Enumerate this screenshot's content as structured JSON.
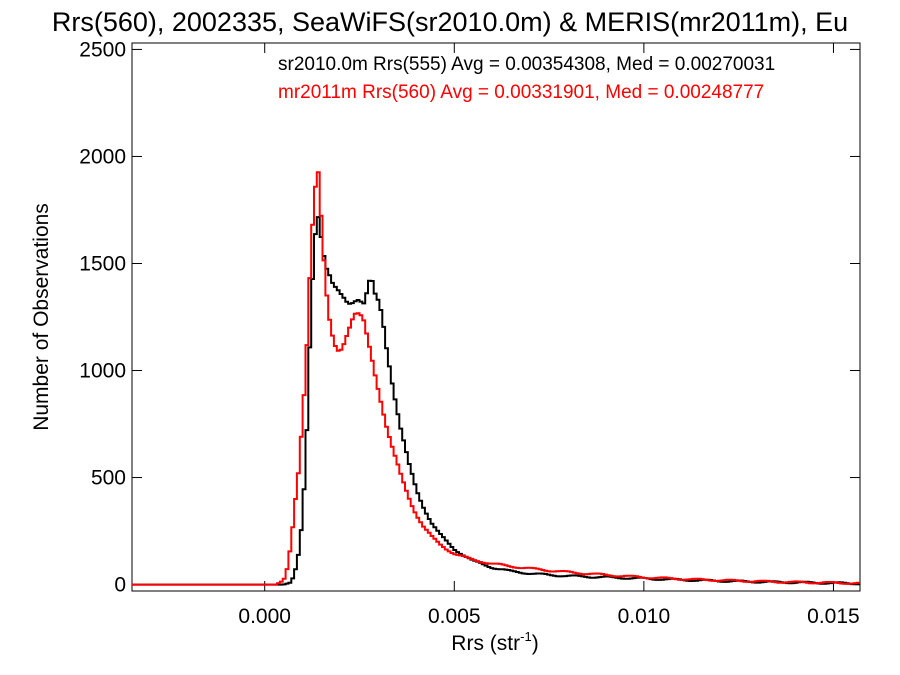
{
  "chart_data": {
    "type": "line",
    "title": "Rrs(560), 2002335, SeaWiFS(sr2010.0m) & MERIS(mr2011m), Eu",
    "xlabel_main": "Rrs (str",
    "xlabel_sup": "-1",
    "xlabel_close": ")",
    "ylabel": "Number of Observations",
    "xlim": [
      -0.0035,
      0.0157
    ],
    "ylim": [
      -30,
      2530
    ],
    "x_ticks": [
      0.0,
      0.005,
      0.01,
      0.015
    ],
    "x_tick_labels": [
      "0.000",
      "0.005",
      "0.010",
      "0.015"
    ],
    "y_ticks": [
      0,
      500,
      1000,
      1500,
      2000,
      2500
    ],
    "y_tick_labels": [
      "0",
      "500",
      "1000",
      "1500",
      "2000",
      "2500"
    ],
    "grid": false,
    "series": [
      {
        "name": "sr2010.0m Rrs(555)",
        "stats_text": "sr2010.0m Rrs(555) Avg = 0.00354308, Med = 0.00270031",
        "color": "#000000",
        "points": [
          [
            -0.0035,
            0
          ],
          [
            0.0005,
            0
          ],
          [
            0.0007,
            10
          ],
          [
            0.0008,
            60
          ],
          [
            0.0009,
            150
          ],
          [
            0.001,
            320
          ],
          [
            0.0011,
            650
          ],
          [
            0.0012,
            1150
          ],
          [
            0.0013,
            1550
          ],
          [
            0.0014,
            1720
          ],
          [
            0.0015,
            1620
          ],
          [
            0.0016,
            1520
          ],
          [
            0.0017,
            1480
          ],
          [
            0.0018,
            1420
          ],
          [
            0.0019,
            1380
          ],
          [
            0.002,
            1340
          ],
          [
            0.0021,
            1310
          ],
          [
            0.0022,
            1290
          ],
          [
            0.0023,
            1310
          ],
          [
            0.0024,
            1340
          ],
          [
            0.0025,
            1360
          ],
          [
            0.0026,
            1330
          ],
          [
            0.0027,
            1380
          ],
          [
            0.0028,
            1440
          ],
          [
            0.0029,
            1340
          ],
          [
            0.003,
            1300
          ],
          [
            0.0031,
            1240
          ],
          [
            0.0032,
            1120
          ],
          [
            0.0033,
            1020
          ],
          [
            0.0034,
            920
          ],
          [
            0.0035,
            820
          ],
          [
            0.0036,
            720
          ],
          [
            0.0037,
            640
          ],
          [
            0.0038,
            560
          ],
          [
            0.0039,
            500
          ],
          [
            0.004,
            440
          ],
          [
            0.0042,
            360
          ],
          [
            0.0044,
            290
          ],
          [
            0.0046,
            240
          ],
          [
            0.0048,
            200
          ],
          [
            0.005,
            165
          ],
          [
            0.0055,
            110
          ],
          [
            0.006,
            80
          ],
          [
            0.0065,
            62
          ],
          [
            0.007,
            52
          ],
          [
            0.0075,
            45
          ],
          [
            0.008,
            40
          ],
          [
            0.009,
            34
          ],
          [
            0.01,
            28
          ],
          [
            0.011,
            22
          ],
          [
            0.012,
            17
          ],
          [
            0.013,
            13
          ],
          [
            0.014,
            10
          ],
          [
            0.015,
            7
          ],
          [
            0.0157,
            5
          ]
        ]
      },
      {
        "name": "mr2011m Rrs(560)",
        "stats_text": "mr2011m Rrs(560) Avg = 0.00331901, Med = 0.00248777",
        "color": "#ff0000",
        "points": [
          [
            -0.0035,
            0
          ],
          [
            0.0003,
            0
          ],
          [
            0.0005,
            20
          ],
          [
            0.0006,
            80
          ],
          [
            0.0007,
            200
          ],
          [
            0.0008,
            380
          ],
          [
            0.0009,
            540
          ],
          [
            0.001,
            760
          ],
          [
            0.0011,
            1050
          ],
          [
            0.0012,
            1480
          ],
          [
            0.0013,
            1820
          ],
          [
            0.0014,
            2000
          ],
          [
            0.0015,
            1720
          ],
          [
            0.0016,
            1420
          ],
          [
            0.0017,
            1240
          ],
          [
            0.0018,
            1130
          ],
          [
            0.0019,
            1070
          ],
          [
            0.002,
            1080
          ],
          [
            0.0021,
            1130
          ],
          [
            0.0022,
            1200
          ],
          [
            0.0023,
            1260
          ],
          [
            0.0024,
            1290
          ],
          [
            0.0025,
            1270
          ],
          [
            0.0026,
            1230
          ],
          [
            0.0027,
            1140
          ],
          [
            0.0028,
            1060
          ],
          [
            0.0029,
            980
          ],
          [
            0.003,
            910
          ],
          [
            0.0031,
            840
          ],
          [
            0.0032,
            760
          ],
          [
            0.0033,
            690
          ],
          [
            0.0034,
            620
          ],
          [
            0.0035,
            560
          ],
          [
            0.0036,
            500
          ],
          [
            0.0037,
            450
          ],
          [
            0.0038,
            405
          ],
          [
            0.0039,
            365
          ],
          [
            0.004,
            330
          ],
          [
            0.0042,
            270
          ],
          [
            0.0044,
            225
          ],
          [
            0.0046,
            190
          ],
          [
            0.0048,
            165
          ],
          [
            0.005,
            145
          ],
          [
            0.0055,
            115
          ],
          [
            0.006,
            98
          ],
          [
            0.0065,
            85
          ],
          [
            0.007,
            75
          ],
          [
            0.0075,
            66
          ],
          [
            0.008,
            58
          ],
          [
            0.009,
            45
          ],
          [
            0.01,
            34
          ],
          [
            0.011,
            26
          ],
          [
            0.012,
            20
          ],
          [
            0.013,
            15
          ],
          [
            0.014,
            11
          ],
          [
            0.015,
            8
          ],
          [
            0.0157,
            6
          ]
        ]
      }
    ]
  }
}
